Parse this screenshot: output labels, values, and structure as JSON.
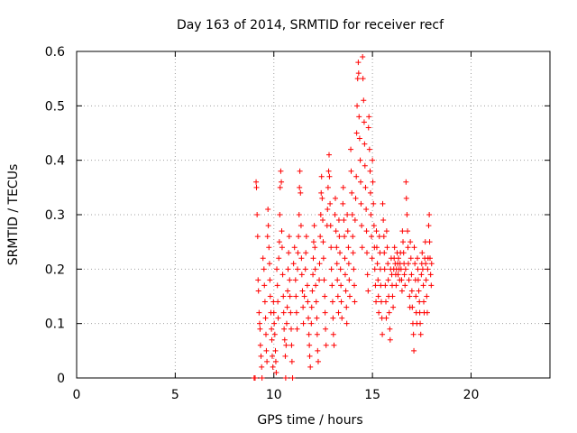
{
  "chart_data": {
    "type": "scatter",
    "title": "Day 163 of 2014, SRMTID for receiver recf",
    "xlabel": "GPS time / hours",
    "ylabel": "SRMTID / TECUs",
    "xlim": [
      0,
      24
    ],
    "ylim": [
      0,
      0.6
    ],
    "xticks": [
      0,
      5,
      10,
      15,
      20
    ],
    "yticks": [
      0,
      0.1,
      0.2,
      0.3,
      0.4,
      0.5,
      0.6
    ],
    "xtick_labels": [
      "0",
      "5",
      "10",
      "15",
      "20"
    ],
    "ytick_labels": [
      "0",
      "0.1",
      "0.2",
      "0.3",
      "0.4",
      "0.5",
      "0.6"
    ],
    "grid": true,
    "marker": "+",
    "color": "#ff0000",
    "approximate_points": true,
    "points": [
      [
        9.0,
        0.0
      ],
      [
        9.05,
        0.0
      ],
      [
        9.1,
        0.36
      ],
      [
        9.12,
        0.35
      ],
      [
        9.15,
        0.3
      ],
      [
        9.18,
        0.26
      ],
      [
        9.2,
        0.18
      ],
      [
        9.22,
        0.16
      ],
      [
        9.25,
        0.12
      ],
      [
        9.28,
        0.1
      ],
      [
        9.3,
        0.09
      ],
      [
        9.32,
        0.06
      ],
      [
        9.35,
        0.04
      ],
      [
        9.38,
        0.02
      ],
      [
        9.4,
        0.0
      ],
      [
        9.45,
        0.22
      ],
      [
        9.5,
        0.2
      ],
      [
        9.52,
        0.17
      ],
      [
        9.55,
        0.14
      ],
      [
        9.58,
        0.11
      ],
      [
        9.6,
        0.08
      ],
      [
        9.62,
        0.05
      ],
      [
        9.65,
        0.03
      ],
      [
        9.68,
        0.26
      ],
      [
        9.7,
        0.31
      ],
      [
        9.72,
        0.28
      ],
      [
        9.75,
        0.24
      ],
      [
        9.78,
        0.21
      ],
      [
        9.8,
        0.18
      ],
      [
        9.82,
        0.15
      ],
      [
        9.85,
        0.12
      ],
      [
        9.88,
        0.09
      ],
      [
        9.9,
        0.07
      ],
      [
        9.92,
        0.04
      ],
      [
        9.95,
        0.02
      ],
      [
        9.98,
        0.14
      ],
      [
        10.0,
        0.12
      ],
      [
        10.02,
        0.1
      ],
      [
        10.05,
        0.08
      ],
      [
        10.08,
        0.05
      ],
      [
        10.1,
        0.03
      ],
      [
        10.12,
        0.01
      ],
      [
        10.15,
        0.2
      ],
      [
        10.18,
        0.17
      ],
      [
        10.2,
        0.14
      ],
      [
        10.22,
        0.11
      ],
      [
        10.25,
        0.22
      ],
      [
        10.28,
        0.25
      ],
      [
        10.3,
        0.3
      ],
      [
        10.32,
        0.35
      ],
      [
        10.35,
        0.38
      ],
      [
        10.38,
        0.36
      ],
      [
        10.4,
        0.27
      ],
      [
        10.42,
        0.24
      ],
      [
        10.45,
        0.19
      ],
      [
        10.48,
        0.15
      ],
      [
        10.5,
        0.12
      ],
      [
        10.52,
        0.09
      ],
      [
        10.55,
        0.07
      ],
      [
        10.58,
        0.04
      ],
      [
        10.6,
        0.0
      ],
      [
        10.62,
        0.06
      ],
      [
        10.65,
        0.1
      ],
      [
        10.68,
        0.13
      ],
      [
        10.7,
        0.16
      ],
      [
        10.72,
        0.2
      ],
      [
        10.75,
        0.23
      ],
      [
        10.78,
        0.26
      ],
      [
        10.8,
        0.18
      ],
      [
        10.82,
        0.15
      ],
      [
        10.85,
        0.12
      ],
      [
        10.88,
        0.09
      ],
      [
        10.9,
        0.06
      ],
      [
        10.92,
        0.03
      ],
      [
        10.95,
        0.0
      ],
      [
        11.0,
        0.21
      ],
      [
        11.05,
        0.24
      ],
      [
        11.1,
        0.18
      ],
      [
        11.12,
        0.15
      ],
      [
        11.15,
        0.12
      ],
      [
        11.18,
        0.09
      ],
      [
        11.2,
        0.2
      ],
      [
        11.22,
        0.23
      ],
      [
        11.25,
        0.26
      ],
      [
        11.28,
        0.3
      ],
      [
        11.3,
        0.35
      ],
      [
        11.32,
        0.38
      ],
      [
        11.35,
        0.34
      ],
      [
        11.38,
        0.28
      ],
      [
        11.4,
        0.22
      ],
      [
        11.42,
        0.19
      ],
      [
        11.45,
        0.16
      ],
      [
        11.48,
        0.13
      ],
      [
        11.5,
        0.1
      ],
      [
        11.55,
        0.15
      ],
      [
        11.6,
        0.2
      ],
      [
        11.62,
        0.23
      ],
      [
        11.65,
        0.26
      ],
      [
        11.7,
        0.17
      ],
      [
        11.72,
        0.14
      ],
      [
        11.75,
        0.11
      ],
      [
        11.78,
        0.08
      ],
      [
        11.8,
        0.06
      ],
      [
        11.82,
        0.04
      ],
      [
        11.85,
        0.02
      ],
      [
        11.9,
        0.1
      ],
      [
        11.92,
        0.13
      ],
      [
        11.95,
        0.16
      ],
      [
        11.98,
        0.19
      ],
      [
        12.0,
        0.22
      ],
      [
        12.02,
        0.25
      ],
      [
        12.05,
        0.28
      ],
      [
        12.08,
        0.24
      ],
      [
        12.1,
        0.2
      ],
      [
        12.12,
        0.17
      ],
      [
        12.15,
        0.14
      ],
      [
        12.18,
        0.11
      ],
      [
        12.2,
        0.08
      ],
      [
        12.22,
        0.05
      ],
      [
        12.25,
        0.03
      ],
      [
        12.3,
        0.18
      ],
      [
        12.32,
        0.21
      ],
      [
        12.35,
        0.26
      ],
      [
        12.38,
        0.3
      ],
      [
        12.4,
        0.34
      ],
      [
        12.42,
        0.37
      ],
      [
        12.45,
        0.33
      ],
      [
        12.48,
        0.29
      ],
      [
        12.5,
        0.25
      ],
      [
        12.52,
        0.22
      ],
      [
        12.55,
        0.18
      ],
      [
        12.58,
        0.15
      ],
      [
        12.6,
        0.12
      ],
      [
        12.62,
        0.09
      ],
      [
        12.65,
        0.06
      ],
      [
        12.7,
        0.28
      ],
      [
        12.72,
        0.31
      ],
      [
        12.75,
        0.35
      ],
      [
        12.78,
        0.38
      ],
      [
        12.8,
        0.41
      ],
      [
        12.82,
        0.37
      ],
      [
        12.85,
        0.32
      ],
      [
        12.88,
        0.28
      ],
      [
        12.9,
        0.24
      ],
      [
        12.92,
        0.2
      ],
      [
        12.95,
        0.17
      ],
      [
        12.98,
        0.14
      ],
      [
        13.0,
        0.11
      ],
      [
        13.02,
        0.08
      ],
      [
        13.05,
        0.06
      ],
      [
        13.1,
        0.3
      ],
      [
        13.12,
        0.33
      ],
      [
        13.15,
        0.27
      ],
      [
        13.18,
        0.24
      ],
      [
        13.2,
        0.21
      ],
      [
        13.22,
        0.18
      ],
      [
        13.25,
        0.15
      ],
      [
        13.28,
        0.12
      ],
      [
        13.3,
        0.29
      ],
      [
        13.32,
        0.26
      ],
      [
        13.35,
        0.23
      ],
      [
        13.38,
        0.2
      ],
      [
        13.4,
        0.17
      ],
      [
        13.42,
        0.14
      ],
      [
        13.45,
        0.11
      ],
      [
        13.5,
        0.32
      ],
      [
        13.52,
        0.35
      ],
      [
        13.55,
        0.29
      ],
      [
        13.58,
        0.26
      ],
      [
        13.6,
        0.22
      ],
      [
        13.62,
        0.19
      ],
      [
        13.65,
        0.16
      ],
      [
        13.68,
        0.13
      ],
      [
        13.7,
        0.1
      ],
      [
        13.72,
        0.3
      ],
      [
        13.75,
        0.27
      ],
      [
        13.78,
        0.24
      ],
      [
        13.8,
        0.21
      ],
      [
        13.82,
        0.18
      ],
      [
        13.85,
        0.15
      ],
      [
        13.9,
        0.42
      ],
      [
        13.92,
        0.38
      ],
      [
        13.95,
        0.34
      ],
      [
        13.98,
        0.3
      ],
      [
        14.0,
        0.26
      ],
      [
        14.02,
        0.23
      ],
      [
        14.05,
        0.2
      ],
      [
        14.08,
        0.17
      ],
      [
        14.1,
        0.14
      ],
      [
        14.12,
        0.29
      ],
      [
        14.15,
        0.33
      ],
      [
        14.18,
        0.37
      ],
      [
        14.2,
        0.45
      ],
      [
        14.22,
        0.5
      ],
      [
        14.25,
        0.55
      ],
      [
        14.28,
        0.58
      ],
      [
        14.3,
        0.56
      ],
      [
        14.32,
        0.48
      ],
      [
        14.35,
        0.44
      ],
      [
        14.38,
        0.4
      ],
      [
        14.4,
        0.36
      ],
      [
        14.42,
        0.32
      ],
      [
        14.45,
        0.28
      ],
      [
        14.48,
        0.24
      ],
      [
        14.5,
        0.59
      ],
      [
        14.52,
        0.55
      ],
      [
        14.55,
        0.51
      ],
      [
        14.58,
        0.47
      ],
      [
        14.6,
        0.43
      ],
      [
        14.62,
        0.39
      ],
      [
        14.65,
        0.35
      ],
      [
        14.68,
        0.31
      ],
      [
        14.7,
        0.27
      ],
      [
        14.72,
        0.23
      ],
      [
        14.75,
        0.19
      ],
      [
        14.78,
        0.16
      ],
      [
        14.8,
        0.46
      ],
      [
        14.82,
        0.48
      ],
      [
        14.85,
        0.42
      ],
      [
        14.88,
        0.38
      ],
      [
        14.9,
        0.34
      ],
      [
        14.92,
        0.3
      ],
      [
        14.95,
        0.26
      ],
      [
        14.98,
        0.22
      ],
      [
        15.0,
        0.4
      ],
      [
        15.02,
        0.36
      ],
      [
        15.05,
        0.32
      ],
      [
        15.08,
        0.28
      ],
      [
        15.1,
        0.24
      ],
      [
        15.12,
        0.2
      ],
      [
        15.15,
        0.17
      ],
      [
        15.18,
        0.14
      ],
      [
        15.2,
        0.27
      ],
      [
        15.22,
        0.24
      ],
      [
        15.25,
        0.21
      ],
      [
        15.28,
        0.18
      ],
      [
        15.3,
        0.15
      ],
      [
        15.32,
        0.12
      ],
      [
        15.35,
        0.26
      ],
      [
        15.38,
        0.23
      ],
      [
        15.4,
        0.2
      ],
      [
        15.42,
        0.17
      ],
      [
        15.45,
        0.14
      ],
      [
        15.48,
        0.11
      ],
      [
        15.5,
        0.08
      ],
      [
        15.52,
        0.32
      ],
      [
        15.55,
        0.29
      ],
      [
        15.58,
        0.26
      ],
      [
        15.6,
        0.23
      ],
      [
        15.62,
        0.2
      ],
      [
        15.65,
        0.17
      ],
      [
        15.68,
        0.14
      ],
      [
        15.7,
        0.11
      ],
      [
        15.72,
        0.27
      ],
      [
        15.75,
        0.24
      ],
      [
        15.78,
        0.21
      ],
      [
        15.8,
        0.18
      ],
      [
        15.82,
        0.15
      ],
      [
        15.85,
        0.12
      ],
      [
        15.88,
        0.09
      ],
      [
        15.9,
        0.07
      ],
      [
        15.92,
        0.2
      ],
      [
        15.95,
        0.22
      ],
      [
        15.98,
        0.19
      ],
      [
        16.0,
        0.17
      ],
      [
        16.02,
        0.15
      ],
      [
        16.05,
        0.13
      ],
      [
        16.08,
        0.2
      ],
      [
        16.1,
        0.22
      ],
      [
        16.12,
        0.24
      ],
      [
        16.15,
        0.21
      ],
      [
        16.18,
        0.19
      ],
      [
        16.2,
        0.17
      ],
      [
        16.22,
        0.2
      ],
      [
        16.25,
        0.23
      ],
      [
        16.28,
        0.21
      ],
      [
        16.3,
        0.19
      ],
      [
        16.32,
        0.22
      ],
      [
        16.35,
        0.2
      ],
      [
        16.38,
        0.18
      ],
      [
        16.4,
        0.21
      ],
      [
        16.42,
        0.23
      ],
      [
        16.45,
        0.2
      ],
      [
        16.48,
        0.18
      ],
      [
        16.5,
        0.16
      ],
      [
        16.52,
        0.27
      ],
      [
        16.55,
        0.25
      ],
      [
        16.58,
        0.23
      ],
      [
        16.6,
        0.21
      ],
      [
        16.62,
        0.19
      ],
      [
        16.65,
        0.17
      ],
      [
        16.68,
        0.2
      ],
      [
        16.7,
        0.36
      ],
      [
        16.72,
        0.33
      ],
      [
        16.75,
        0.3
      ],
      [
        16.78,
        0.27
      ],
      [
        16.8,
        0.24
      ],
      [
        16.82,
        0.21
      ],
      [
        16.85,
        0.18
      ],
      [
        16.88,
        0.15
      ],
      [
        16.9,
        0.13
      ],
      [
        16.92,
        0.25
      ],
      [
        16.95,
        0.22
      ],
      [
        16.98,
        0.19
      ],
      [
        17.0,
        0.16
      ],
      [
        17.02,
        0.13
      ],
      [
        17.05,
        0.1
      ],
      [
        17.08,
        0.08
      ],
      [
        17.1,
        0.05
      ],
      [
        17.12,
        0.24
      ],
      [
        17.15,
        0.21
      ],
      [
        17.18,
        0.18
      ],
      [
        17.2,
        0.15
      ],
      [
        17.22,
        0.12
      ],
      [
        17.25,
        0.1
      ],
      [
        17.28,
        0.22
      ],
      [
        17.3,
        0.2
      ],
      [
        17.32,
        0.18
      ],
      [
        17.35,
        0.16
      ],
      [
        17.38,
        0.14
      ],
      [
        17.4,
        0.12
      ],
      [
        17.42,
        0.1
      ],
      [
        17.45,
        0.08
      ],
      [
        17.48,
        0.19
      ],
      [
        17.5,
        0.21
      ],
      [
        17.52,
        0.23
      ],
      [
        17.55,
        0.2
      ],
      [
        17.58,
        0.17
      ],
      [
        17.6,
        0.14
      ],
      [
        17.62,
        0.12
      ],
      [
        17.65,
        0.22
      ],
      [
        17.68,
        0.25
      ],
      [
        17.7,
        0.21
      ],
      [
        17.72,
        0.18
      ],
      [
        17.75,
        0.15
      ],
      [
        17.78,
        0.12
      ],
      [
        17.8,
        0.2
      ],
      [
        17.82,
        0.22
      ],
      [
        17.85,
        0.28
      ],
      [
        17.88,
        0.3
      ],
      [
        17.9,
        0.25
      ],
      [
        17.92,
        0.22
      ],
      [
        17.95,
        0.19
      ],
      [
        17.98,
        0.17
      ],
      [
        18.0,
        0.21
      ]
    ]
  }
}
